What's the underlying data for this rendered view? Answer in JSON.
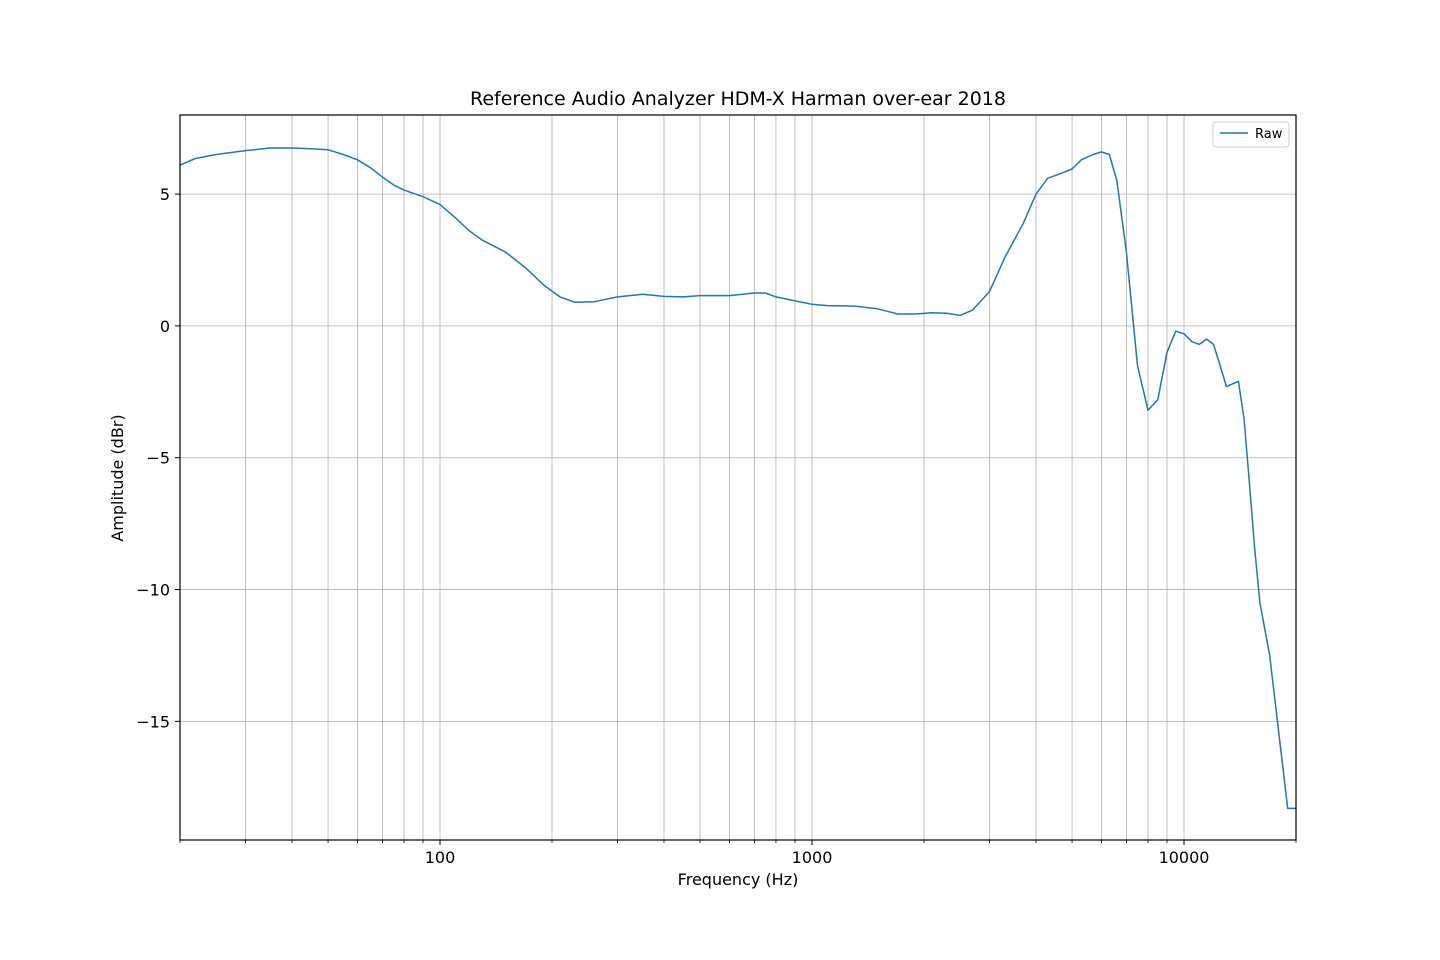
{
  "chart_data": {
    "type": "line",
    "title": "Reference Audio Analyzer HDM-X Harman over-ear 2018",
    "xlabel": "Frequency (Hz)",
    "ylabel": "Amplitude (dBr)",
    "x_scale": "log",
    "xlim": [
      20,
      20000
    ],
    "ylim": [
      -19.5,
      8
    ],
    "x_ticks": [
      100,
      1000,
      10000
    ],
    "x_tick_labels": [
      "100",
      "1000",
      "10000"
    ],
    "y_ticks": [
      5,
      0,
      -5,
      -10,
      -15
    ],
    "y_tick_labels": [
      "5",
      "0",
      "−5",
      "−10",
      "−15"
    ],
    "grid": true,
    "legend": "top-right",
    "colors": {
      "raw": "#1f77b4",
      "grid": "#b0b0b0"
    },
    "series": [
      {
        "name": "Raw",
        "x": [
          20,
          22,
          25,
          30,
          35,
          40,
          45,
          50,
          55,
          60,
          65,
          70,
          75,
          80,
          90,
          100,
          110,
          120,
          130,
          150,
          170,
          190,
          210,
          230,
          260,
          300,
          350,
          400,
          450,
          500,
          550,
          600,
          650,
          700,
          750,
          800,
          900,
          1000,
          1100,
          1300,
          1500,
          1700,
          1900,
          2100,
          2300,
          2500,
          2700,
          3000,
          3300,
          3700,
          4000,
          4300,
          4600,
          5000,
          5300,
          5700,
          6000,
          6300,
          6600,
          7000,
          7500,
          8000,
          8500,
          9000,
          9500,
          10000,
          10500,
          11000,
          11500,
          12000,
          12500,
          13000,
          13500,
          14000,
          14500,
          15000,
          15500,
          16000,
          17000,
          18000,
          19000,
          20000
        ],
        "y": [
          6.1,
          6.35,
          6.5,
          6.65,
          6.75,
          6.75,
          6.72,
          6.68,
          6.5,
          6.3,
          6.0,
          5.65,
          5.35,
          5.15,
          4.9,
          4.6,
          4.1,
          3.6,
          3.25,
          2.8,
          2.2,
          1.55,
          1.1,
          0.9,
          0.92,
          1.1,
          1.2,
          1.12,
          1.1,
          1.15,
          1.15,
          1.15,
          1.2,
          1.25,
          1.25,
          1.1,
          0.95,
          0.82,
          0.77,
          0.75,
          0.65,
          0.45,
          0.45,
          0.5,
          0.48,
          0.4,
          0.6,
          1.3,
          2.6,
          3.9,
          5.0,
          5.6,
          5.75,
          5.95,
          6.3,
          6.5,
          6.6,
          6.5,
          5.5,
          2.8,
          -1.5,
          -3.2,
          -2.8,
          -1.0,
          -0.2,
          -0.3,
          -0.6,
          -0.7,
          -0.5,
          -0.7,
          -1.5,
          -2.3,
          -2.2,
          -2.1,
          -3.5,
          -6.0,
          -8.5,
          -10.5,
          -12.5,
          -15.5,
          -18.3,
          -18.3
        ]
      }
    ]
  }
}
